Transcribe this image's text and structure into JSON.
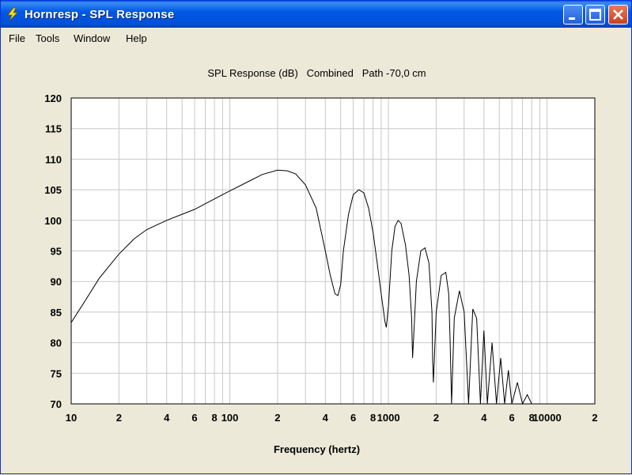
{
  "window": {
    "title": "Hornresp - SPL Response",
    "title_bar_color": "#0054e3",
    "buttons": {
      "minimize_icon": "minimize-icon",
      "maximize_icon": "maximize-icon",
      "close_icon": "close-icon"
    }
  },
  "menu": [
    {
      "label": "File"
    },
    {
      "label": "Tools"
    },
    {
      "label": "Window"
    },
    {
      "label": "Help"
    }
  ],
  "chart_data": {
    "type": "line",
    "title": "SPL Response (dB)   Combined   Path -70,0 cm",
    "xlabel": "Frequency (hertz)",
    "ylabel": "",
    "xscale": "log",
    "xlim": [
      10,
      20000
    ],
    "ylim": [
      70,
      120
    ],
    "grid": true,
    "yticks": [
      "120",
      "115",
      "110",
      "105",
      "100",
      "95",
      "90",
      "85",
      "80",
      "75",
      "70"
    ],
    "xticks": [
      {
        "value": 10,
        "label": "10"
      },
      {
        "value": 20,
        "label": "2"
      },
      {
        "value": 40,
        "label": "4"
      },
      {
        "value": 60,
        "label": "6"
      },
      {
        "value": 80,
        "label": "8"
      },
      {
        "value": 100,
        "label": "100"
      },
      {
        "value": 200,
        "label": "2"
      },
      {
        "value": 400,
        "label": "4"
      },
      {
        "value": 600,
        "label": "6"
      },
      {
        "value": 800,
        "label": "8"
      },
      {
        "value": 1000,
        "label": "1000"
      },
      {
        "value": 2000,
        "label": "2"
      },
      {
        "value": 4000,
        "label": "4"
      },
      {
        "value": 6000,
        "label": "6"
      },
      {
        "value": 8000,
        "label": "8"
      },
      {
        "value": 10000,
        "label": "10000"
      },
      {
        "value": 20000,
        "label": "2"
      }
    ],
    "series": [
      {
        "line_color": "#000000",
        "x": [
          10,
          12,
          15,
          20,
          25,
          30,
          40,
          50,
          60,
          80,
          100,
          130,
          160,
          200,
          230,
          260,
          300,
          350,
          400,
          430,
          460,
          480,
          500,
          520,
          560,
          600,
          650,
          700,
          750,
          800,
          850,
          900,
          950,
          970,
          1000,
          1050,
          1100,
          1150,
          1200,
          1280,
          1350,
          1400,
          1420,
          1450,
          1500,
          1600,
          1700,
          1800,
          1880,
          1900,
          1920,
          2000,
          2150,
          2300,
          2400,
          2450,
          2500,
          2600,
          2800,
          3000,
          3200,
          3400,
          3600,
          3800,
          4000,
          4200,
          4500,
          4800,
          5100,
          5400,
          5700,
          6000,
          6500,
          7000,
          7500,
          8000
        ],
        "y": [
          83.3,
          86.5,
          90.5,
          94.5,
          97.0,
          98.5,
          100.0,
          101.0,
          101.8,
          103.5,
          104.8,
          106.3,
          107.5,
          108.2,
          108.1,
          107.6,
          105.8,
          102.0,
          95.0,
          91.0,
          88.0,
          87.7,
          89.5,
          95.0,
          101.0,
          104.2,
          105.0,
          104.5,
          102.0,
          98.0,
          93.0,
          88.0,
          83.5,
          82.5,
          86.0,
          95.0,
          99.0,
          100.0,
          99.5,
          96.0,
          91.0,
          84.0,
          77.5,
          82.0,
          90.0,
          95.0,
          95.5,
          93.0,
          85.0,
          77.0,
          73.5,
          85.0,
          91.0,
          91.5,
          88.0,
          80.0,
          70.0,
          84.0,
          88.5,
          85.0,
          70.0,
          85.5,
          84.0,
          70.0,
          82.0,
          70.0,
          80.0,
          70.0,
          77.5,
          70.0,
          75.5,
          70.0,
          73.5,
          70.0,
          71.5,
          70.0
        ]
      }
    ]
  }
}
